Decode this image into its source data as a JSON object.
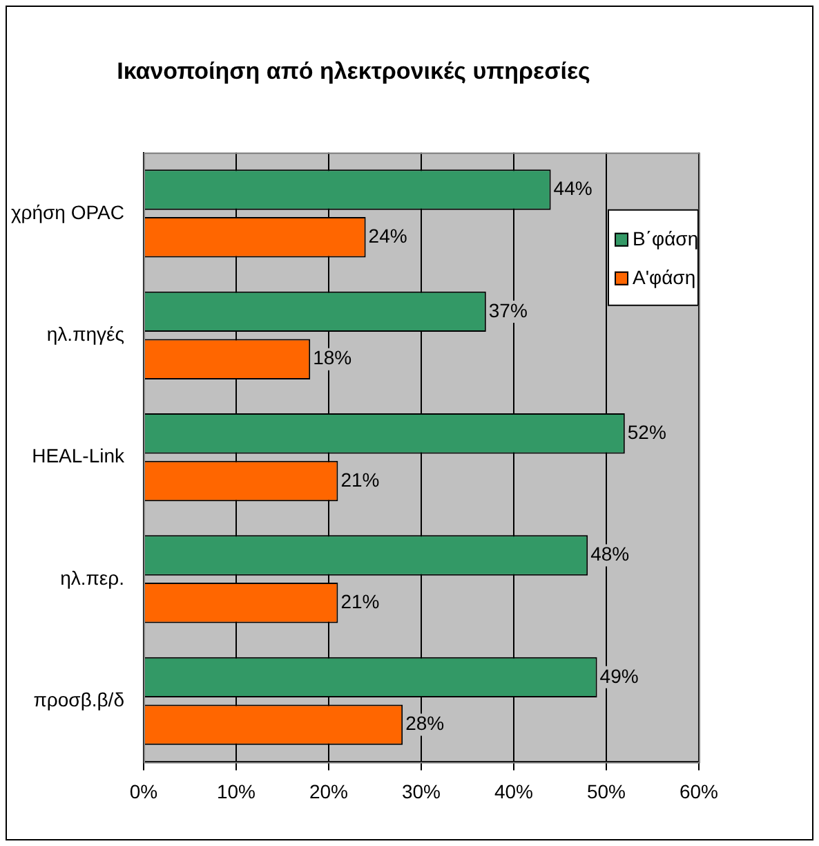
{
  "chart_data": {
    "type": "bar",
    "orientation": "horizontal",
    "title": "Ικανοποίηση από ηλεκτρονικές υπηρεσίες",
    "categories": [
      "χρήση OPAC",
      "ηλ.πηγές",
      "HEAL-Link",
      "ηλ.περ.",
      "προσβ.β/δ"
    ],
    "series": [
      {
        "name": "Β΄φάση",
        "color": "#339966",
        "values": [
          44,
          37,
          52,
          48,
          49
        ],
        "value_labels": [
          "44%",
          "37%",
          "52%",
          "48%",
          "49%"
        ]
      },
      {
        "name": "Α'φάση",
        "color": "#ff6600",
        "values": [
          24,
          18,
          21,
          21,
          28
        ],
        "value_labels": [
          "24%",
          "18%",
          "21%",
          "21%",
          "28%"
        ]
      }
    ],
    "xlim": [
      0,
      60
    ],
    "xticks": [
      {
        "value": 0,
        "label": "0%"
      },
      {
        "value": 10,
        "label": "10%"
      },
      {
        "value": 20,
        "label": "20%"
      },
      {
        "value": 30,
        "label": "30%"
      },
      {
        "value": 40,
        "label": "40%"
      },
      {
        "value": 50,
        "label": "50%"
      },
      {
        "value": 60,
        "label": "60%"
      }
    ],
    "grid": "x",
    "legend": "top right"
  }
}
